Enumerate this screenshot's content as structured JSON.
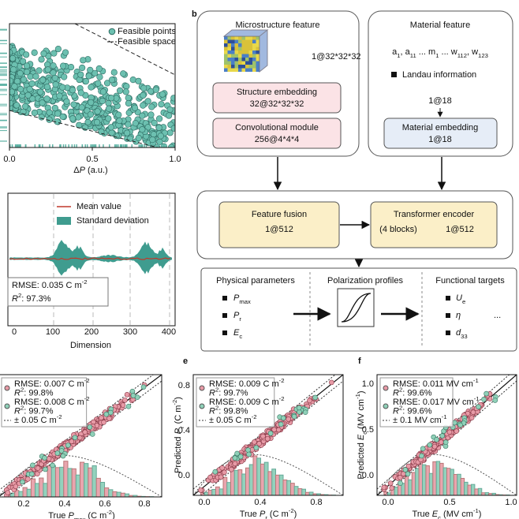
{
  "panel_labels": {
    "b": "b",
    "e": "e",
    "f": "f"
  },
  "panel_a": {
    "legend": [
      "Feasible points",
      "Feasible space"
    ],
    "xticks": [
      "0.0",
      "0.5",
      "1.0"
    ],
    "xlabel": [
      {
        "t": "Δ"
      },
      {
        "t": "P",
        "i": true
      },
      {
        "t": " (a.u.)"
      }
    ]
  },
  "panel_c": {
    "legend": [
      "Mean value",
      "Standard deviation"
    ],
    "xticks": [
      "0",
      "100",
      "200",
      "300",
      "400"
    ],
    "stats": [
      [
        {
          "t": "RMSE: 0.035 C m"
        },
        {
          "t": "-2",
          "sup": true
        }
      ],
      [
        {
          "t": "R",
          "i": true
        },
        {
          "t": "2",
          "sup": true
        },
        {
          "t": ": 97.3%"
        }
      ]
    ],
    "xlabel": "Dimension"
  },
  "panel_b": {
    "micro": {
      "title": "Microstructure feature",
      "size": "1@32*32*32",
      "embed": {
        "title": "Structure embedding",
        "size": "32@32*32*32"
      },
      "conv": {
        "title": "Convolutional module",
        "size": "256@4*4*4"
      }
    },
    "material": {
      "title": "Material feature",
      "vars": [
        {
          "t": "a"
        },
        {
          "t": "1",
          "sub": true
        },
        {
          "t": ", a"
        },
        {
          "t": "11",
          "sub": true
        },
        {
          "t": " ... m"
        },
        {
          "t": "1",
          "sub": true
        },
        {
          "t": " ... w"
        },
        {
          "t": "112",
          "sub": true
        },
        {
          "t": ", w"
        },
        {
          "t": "123",
          "sub": true
        }
      ],
      "landau": "Landau information",
      "size": "1@18",
      "embed": {
        "title": "Material embedding",
        "size": "1@18"
      }
    },
    "fusion": {
      "title": "Feature fusion",
      "size": "1@512"
    },
    "transformer": {
      "title": "Transformer encoder",
      "blocks": "(4 blocks)",
      "size": "1@512"
    },
    "outputs": {
      "physical": {
        "title": "Physical parameters",
        "items": [
          [
            {
              "t": "P",
              "i": true
            },
            {
              "t": "max",
              "sub": true
            }
          ],
          [
            {
              "t": "P",
              "i": true
            },
            {
              "t": "r",
              "sub": true
            }
          ],
          [
            {
              "t": "E",
              "i": true
            },
            {
              "t": "c",
              "sub": true
            }
          ]
        ]
      },
      "profiles": {
        "title": "Polarization profiles"
      },
      "targets": {
        "title": "Functional targets",
        "items": [
          [
            {
              "t": "U",
              "i": true
            },
            {
              "t": "e",
              "sub": true
            }
          ],
          [
            {
              "t": "η",
              "i": true
            }
          ],
          [
            {
              "t": "d",
              "i": true
            },
            {
              "t": "33",
              "sub": true
            }
          ]
        ],
        "more": "..."
      }
    }
  },
  "panel_d": {
    "xticks": [
      "0.2",
      "0.4",
      "0.6",
      "0.8"
    ],
    "stats": [
      [
        {
          "t": "RMSE: 0.007 C m"
        },
        {
          "t": "-2",
          "sup": true
        }
      ],
      [
        {
          "t": "R",
          "i": true
        },
        {
          "t": "2",
          "sup": true
        },
        {
          "t": ": 99.8%"
        }
      ],
      [
        {
          "t": "RMSE: 0.008 C m"
        },
        {
          "t": "-2",
          "sup": true
        }
      ],
      [
        {
          "t": "R",
          "i": true
        },
        {
          "t": "2",
          "sup": true
        },
        {
          "t": ": 99.7%"
        }
      ],
      [
        {
          "t": "± 0.05 C m"
        },
        {
          "t": "-2",
          "sup": true
        }
      ]
    ],
    "xlabel": [
      {
        "t": "True "
      },
      {
        "t": "P",
        "i": true
      },
      {
        "t": "max",
        "sub": true
      },
      {
        "t": " (C m"
      },
      {
        "t": "-2",
        "sup": true
      },
      {
        "t": ")"
      }
    ]
  },
  "panel_e": {
    "xticks": [
      "0.0",
      "0.4",
      "0.8"
    ],
    "yticks": [
      "0.0",
      "0.4",
      "0.8"
    ],
    "stats": [
      [
        {
          "t": "RMSE: 0.009 C m"
        },
        {
          "t": "-2",
          "sup": true
        }
      ],
      [
        {
          "t": "R",
          "i": true
        },
        {
          "t": "2",
          "sup": true
        },
        {
          "t": ": 99.7%"
        }
      ],
      [
        {
          "t": "RMSE: 0.009 C m"
        },
        {
          "t": "-2",
          "sup": true
        }
      ],
      [
        {
          "t": "R",
          "i": true
        },
        {
          "t": "2",
          "sup": true
        },
        {
          "t": ": 99.8%"
        }
      ],
      [
        {
          "t": "± 0.05 C m"
        },
        {
          "t": "-2",
          "sup": true
        }
      ]
    ],
    "xlabel": [
      {
        "t": "True "
      },
      {
        "t": "P",
        "i": true
      },
      {
        "t": "r",
        "sub": true
      },
      {
        "t": " (C m"
      },
      {
        "t": "-2",
        "sup": true
      },
      {
        "t": ")"
      }
    ],
    "ylabel": [
      {
        "t": "Predicted "
      },
      {
        "t": "P",
        "i": true
      },
      {
        "t": "r",
        "sub": true
      },
      {
        "t": " (C m"
      },
      {
        "t": "-2",
        "sup": true
      },
      {
        "t": ")"
      }
    ]
  },
  "panel_f": {
    "xticks": [
      "0.0",
      "0.5",
      "1.0"
    ],
    "yticks": [
      "0.0",
      "0.5",
      "1.0"
    ],
    "stats": [
      [
        {
          "t": "RMSE: 0.011 MV cm"
        },
        {
          "t": "-1",
          "sup": true
        }
      ],
      [
        {
          "t": "R",
          "i": true
        },
        {
          "t": "2",
          "sup": true
        },
        {
          "t": ": 99.6%"
        }
      ],
      [
        {
          "t": "RMSE: 0.017 MV cm"
        },
        {
          "t": "-1",
          "sup": true
        }
      ],
      [
        {
          "t": "R",
          "i": true
        },
        {
          "t": "2",
          "sup": true
        },
        {
          "t": ": 99.6%"
        }
      ],
      [
        {
          "t": "± 0.1 MV cm"
        },
        {
          "t": "-1",
          "sup": true
        }
      ]
    ],
    "xlabel": [
      {
        "t": "True "
      },
      {
        "t": "E",
        "i": true
      },
      {
        "t": "c",
        "sub": true
      },
      {
        "t": " (MV cm"
      },
      {
        "t": "-1",
        "sup": true
      },
      {
        "t": ")"
      }
    ],
    "ylabel": [
      {
        "t": "Predicted "
      },
      {
        "t": "E",
        "i": true
      },
      {
        "t": "c",
        "sub": true
      },
      {
        "t": " (MV cm"
      },
      {
        "t": "-1",
        "sup": true
      },
      {
        "t": ")"
      }
    ]
  }
}
